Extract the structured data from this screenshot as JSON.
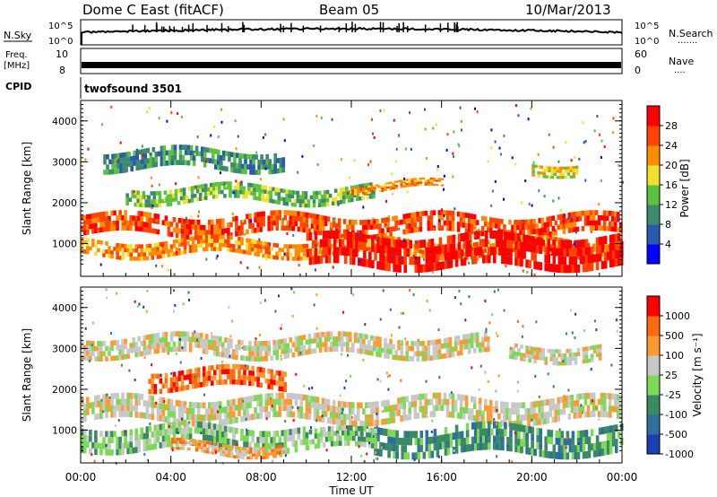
{
  "header": {
    "station": "Dome C East (fitACF)",
    "beam": "Beam 05",
    "date": "10/Mar/2013"
  },
  "panels": {
    "nsky": {
      "label": "N.Sky",
      "right_label": "N.Search",
      "right_dots": "·······",
      "ticks_left": [
        "10^5",
        "10^0"
      ],
      "ticks_right": [
        "10^5",
        "10^0"
      ]
    },
    "freq": {
      "label_line1": "Freq.",
      "label_line2": "[MHz]",
      "right_label": "Nave",
      "right_dots": "····",
      "ticks_left": [
        "10",
        "8"
      ],
      "ticks_right": [
        "60",
        "0"
      ]
    },
    "cpid": {
      "label": "CPID",
      "value": "twofsound 3501"
    }
  },
  "chart_data": [
    {
      "type": "heatmap",
      "name": "power",
      "ylabel": "Slant Range [km]",
      "y_ticks": [
        1000,
        2000,
        3000,
        4000
      ],
      "ylim": [
        200,
        4500
      ],
      "colorbar_label": "Power [dB]",
      "colorbar_ticks": [
        "28",
        "24",
        "20",
        "16",
        "12",
        "8",
        "4"
      ],
      "colors": [
        "#0000ff",
        "#2a59b0",
        "#3d8a6e",
        "#5cc23d",
        "#f0e030",
        "#ff8c00",
        "#ff4500",
        "#ff0000"
      ],
      "bands": [
        {
          "x0": 0,
          "x1": 24,
          "r0": 1200,
          "r1": 1700,
          "level": 6
        },
        {
          "x0": 0,
          "x1": 24,
          "r0": 700,
          "r1": 1100,
          "level": 5
        },
        {
          "x0": 10,
          "x1": 24,
          "r0": 400,
          "r1": 1200,
          "level": 7
        },
        {
          "x0": 2,
          "x1": 13,
          "r0": 2000,
          "r1": 2400,
          "level": 3
        },
        {
          "x0": 1,
          "x1": 9,
          "r0": 2800,
          "r1": 3300,
          "level": 2
        },
        {
          "x0": 12,
          "x1": 16,
          "r0": 2300,
          "r1": 2500,
          "level": 5
        },
        {
          "x0": 20,
          "x1": 22,
          "r0": 2700,
          "r1": 3000,
          "level": 4
        }
      ]
    },
    {
      "type": "heatmap",
      "name": "velocity",
      "ylabel": "Slant Range [km]",
      "xlabel": "Time UT",
      "x_ticks": [
        "00:00",
        "04:00",
        "08:00",
        "12:00",
        "16:00",
        "20:00",
        "00:00"
      ],
      "y_ticks": [
        1000,
        2000,
        3000,
        4000
      ],
      "ylim": [
        200,
        4500
      ],
      "colorbar_label": "Velocity [m s⁻¹]",
      "colorbar_ticks": [
        "1000",
        "500",
        "100",
        "25",
        "-25",
        "-100",
        "-500",
        "-1000"
      ],
      "colors": [
        "#1c3fb5",
        "#2e6f9e",
        "#3a8a63",
        "#7ed957",
        "#c8c8c8",
        "#ff9a30",
        "#ff6a10",
        "#ff0000"
      ],
      "bands": [
        {
          "x0": 0,
          "x1": 24,
          "r0": 1200,
          "r1": 1800,
          "level": 4
        },
        {
          "x0": 0,
          "x1": 10,
          "r0": 500,
          "r1": 1100,
          "level": 3
        },
        {
          "x0": 4,
          "x1": 9,
          "r0": 400,
          "r1": 700,
          "level": 5
        },
        {
          "x0": 13,
          "x1": 24,
          "r0": 400,
          "r1": 1100,
          "level": 2
        },
        {
          "x0": 10,
          "x1": 13,
          "r0": 500,
          "r1": 1000,
          "level": 3
        },
        {
          "x0": 3,
          "x1": 9,
          "r0": 2000,
          "r1": 2500,
          "level": 6
        },
        {
          "x0": 0,
          "x1": 18,
          "r0": 2800,
          "r1": 3300,
          "level": 4
        },
        {
          "x0": 19,
          "x1": 23,
          "r0": 2700,
          "r1": 3100,
          "level": 4
        }
      ]
    }
  ]
}
